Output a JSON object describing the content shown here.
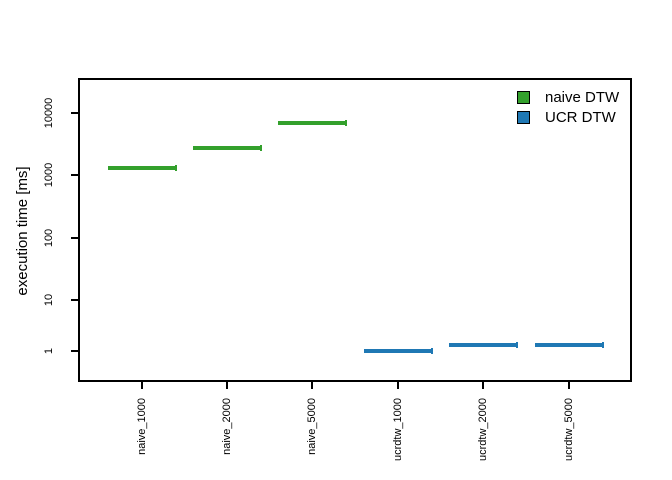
{
  "chart_data": {
    "type": "boxplot",
    "title": "",
    "xlabel": "",
    "ylabel": "execution time [ms]",
    "y_scale": "log10",
    "y_ticks": [
      1,
      10,
      100,
      1000,
      10000
    ],
    "grid": false,
    "legend_position": "top-right",
    "axis_color": "#000000",
    "background": "#ffffff",
    "values_unit": "ms",
    "categories": [
      "naive_1000",
      "naive_2000",
      "naive_5000",
      "ucrdtw_1000",
      "ucrdtw_2000",
      "ucrdtw_5000"
    ],
    "series": [
      {
        "name": "naive DTW",
        "color": "#33A02C",
        "values": [
          1300,
          2700,
          7000,
          null,
          null,
          null
        ]
      },
      {
        "name": "UCR DTW",
        "color": "#1F78B4",
        "values": [
          null,
          null,
          null,
          1.0,
          1.3,
          1.3
        ]
      }
    ]
  }
}
